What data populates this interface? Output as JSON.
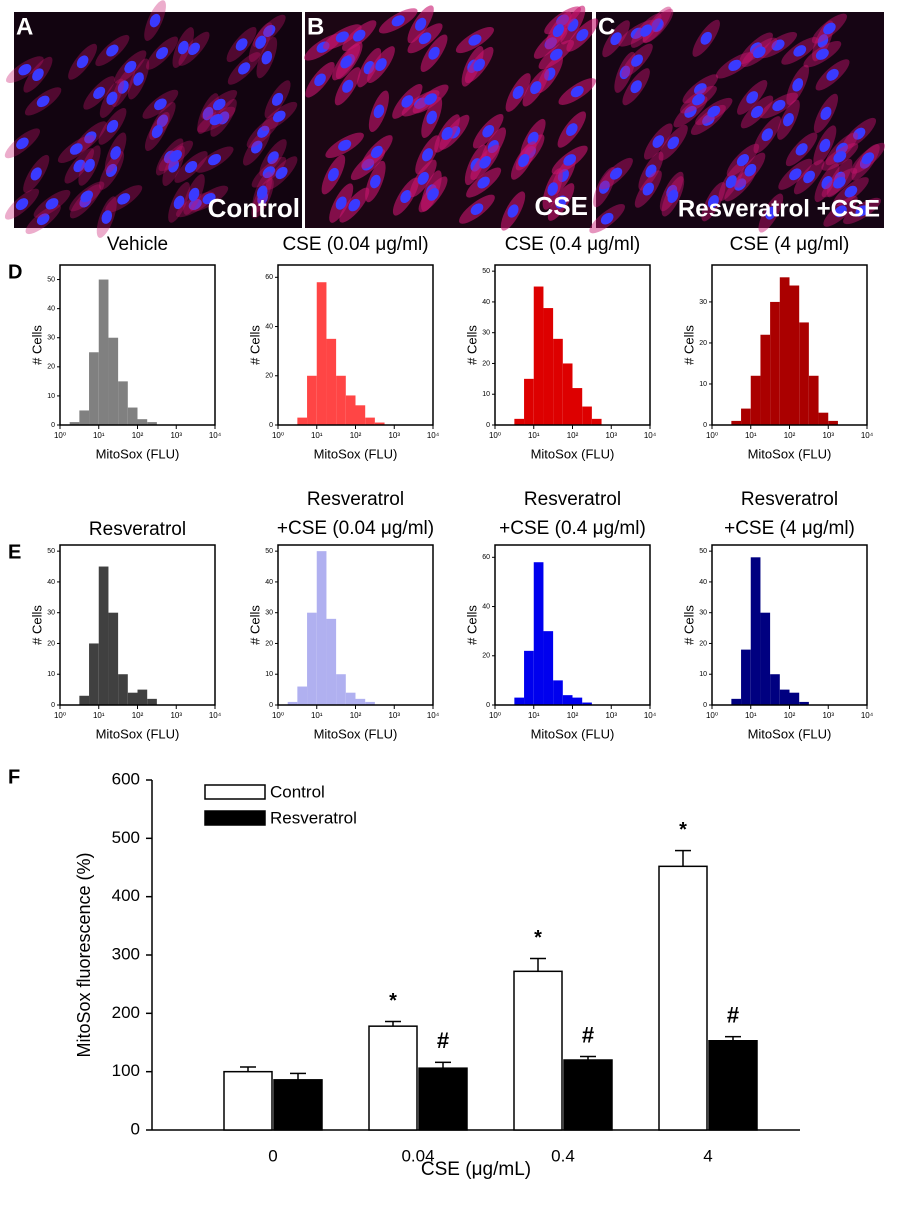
{
  "panels": [
    {
      "letter": "A",
      "label": "Control"
    },
    {
      "letter": "B",
      "label": "CSE"
    },
    {
      "letter": "C",
      "label": "Resveratrol +CSE"
    }
  ],
  "chart_data": [
    {
      "type": "histogram",
      "panel": "D",
      "title": "Vehicle",
      "xlabel": "MitoSox (FLU)",
      "ylabel": "# Cells",
      "color": "#808080",
      "xlog": true,
      "xlim": [
        1,
        10000
      ],
      "xticks": [
        {
          "value": 1,
          "label": "10⁰"
        },
        {
          "value": 10,
          "label": "10¹"
        },
        {
          "value": 100,
          "label": "10²"
        },
        {
          "value": 1000,
          "label": "10³"
        },
        {
          "value": 10000,
          "label": "10⁴"
        }
      ],
      "ylim": [
        0,
        55
      ],
      "yticks": [
        0,
        10,
        20,
        30,
        40,
        50
      ],
      "bins": [
        1,
        1.78,
        3.16,
        5.62,
        10,
        17.8,
        31.6,
        56.2,
        100,
        178,
        316,
        562,
        1000,
        1778,
        3162,
        5623,
        10000
      ],
      "values": [
        0,
        1,
        5,
        25,
        50,
        30,
        15,
        6,
        2,
        1,
        0,
        0,
        0,
        0,
        0,
        0
      ]
    },
    {
      "type": "histogram",
      "title": "CSE (0.04 μg/ml)",
      "xlabel": "MitoSox (FLU)",
      "ylabel": "# Cells",
      "color": "#ff4545",
      "xlog": true,
      "xlim": [
        1,
        10000
      ],
      "xticks": [
        {
          "value": 1,
          "label": "10⁰"
        },
        {
          "value": 10,
          "label": "10¹"
        },
        {
          "value": 100,
          "label": "10²"
        },
        {
          "value": 1000,
          "label": "10³"
        },
        {
          "value": 10000,
          "label": "10⁴"
        }
      ],
      "ylim": [
        0,
        65
      ],
      "yticks": [
        0,
        20,
        40,
        60
      ],
      "bins": [
        1,
        1.78,
        3.16,
        5.62,
        10,
        17.8,
        31.6,
        56.2,
        100,
        178,
        316,
        562,
        1000,
        1778,
        3162,
        5623,
        10000
      ],
      "values": [
        0,
        0,
        3,
        20,
        58,
        35,
        20,
        12,
        8,
        3,
        1,
        0,
        0,
        0,
        0,
        0
      ]
    },
    {
      "type": "histogram",
      "title": "CSE (0.4 μg/ml)",
      "xlabel": "MitoSox (FLU)",
      "ylabel": "# Cells",
      "color": "#dd0000",
      "xlog": true,
      "xlim": [
        1,
        10000
      ],
      "xticks": [
        {
          "value": 1,
          "label": "10⁰"
        },
        {
          "value": 10,
          "label": "10¹"
        },
        {
          "value": 100,
          "label": "10²"
        },
        {
          "value": 1000,
          "label": "10³"
        },
        {
          "value": 10000,
          "label": "10⁴"
        }
      ],
      "ylim": [
        0,
        52
      ],
      "yticks": [
        0,
        10,
        20,
        30,
        40,
        50
      ],
      "bins": [
        1,
        1.78,
        3.16,
        5.62,
        10,
        17.8,
        31.6,
        56.2,
        100,
        178,
        316,
        562,
        1000,
        1778,
        3162,
        5623,
        10000
      ],
      "values": [
        0,
        0,
        2,
        15,
        45,
        38,
        28,
        20,
        12,
        6,
        2,
        0,
        0,
        0,
        0,
        0
      ]
    },
    {
      "type": "histogram",
      "title": "CSE (4 μg/ml)",
      "xlabel": "MitoSox (FLU)",
      "ylabel": "# Cells",
      "color": "#aa0000",
      "xlog": true,
      "xlim": [
        1,
        10000
      ],
      "xticks": [
        {
          "value": 1,
          "label": "10⁰"
        },
        {
          "value": 10,
          "label": "10¹"
        },
        {
          "value": 100,
          "label": "10²"
        },
        {
          "value": 1000,
          "label": "10³"
        },
        {
          "value": 10000,
          "label": "10⁴"
        }
      ],
      "ylim": [
        0,
        39
      ],
      "yticks": [
        0,
        10,
        20,
        30
      ],
      "bins": [
        1,
        1.78,
        3.16,
        5.62,
        10,
        17.8,
        31.6,
        56.2,
        100,
        178,
        316,
        562,
        1000,
        1778,
        3162,
        5623,
        10000
      ],
      "values": [
        0,
        0,
        1,
        4,
        12,
        22,
        30,
        36,
        34,
        25,
        12,
        3,
        1,
        0,
        0,
        0
      ]
    },
    {
      "type": "histogram",
      "panel": "E",
      "title": "Resveratrol",
      "xlabel": "MitoSox (FLU)",
      "ylabel": "# Cells",
      "color": "#404040",
      "xlog": true,
      "xlim": [
        1,
        10000
      ],
      "xticks": [
        {
          "value": 1,
          "label": "10⁰"
        },
        {
          "value": 10,
          "label": "10¹"
        },
        {
          "value": 100,
          "label": "10²"
        },
        {
          "value": 1000,
          "label": "10³"
        },
        {
          "value": 10000,
          "label": "10⁴"
        }
      ],
      "ylim": [
        0,
        52
      ],
      "yticks": [
        0,
        10,
        20,
        30,
        40,
        50
      ],
      "bins": [
        1,
        1.78,
        3.16,
        5.62,
        10,
        17.8,
        31.6,
        56.2,
        100,
        178,
        316,
        562,
        1000,
        1778,
        3162,
        5623,
        10000
      ],
      "values": [
        0,
        0,
        3,
        20,
        45,
        30,
        10,
        4,
        5,
        2,
        0,
        0,
        0,
        0,
        0,
        0
      ]
    },
    {
      "type": "histogram",
      "title": [
        "Resveratrol",
        "+CSE (0.04 μg/ml)"
      ],
      "xlabel": "MitoSox (FLU)",
      "ylabel": "# Cells",
      "color": "#b0b0f0",
      "xlog": true,
      "xlim": [
        1,
        10000
      ],
      "xticks": [
        {
          "value": 1,
          "label": "10⁰"
        },
        {
          "value": 10,
          "label": "10¹"
        },
        {
          "value": 100,
          "label": "10²"
        },
        {
          "value": 1000,
          "label": "10³"
        },
        {
          "value": 10000,
          "label": "10⁴"
        }
      ],
      "ylim": [
        0,
        52
      ],
      "yticks": [
        0,
        10,
        20,
        30,
        40,
        50
      ],
      "bins": [
        1,
        1.78,
        3.16,
        5.62,
        10,
        17.8,
        31.6,
        56.2,
        100,
        178,
        316,
        562,
        1000,
        1778,
        3162,
        5623,
        10000
      ],
      "values": [
        0,
        1,
        6,
        30,
        50,
        28,
        10,
        4,
        2,
        1,
        0,
        0,
        0,
        0,
        0,
        0
      ]
    },
    {
      "type": "histogram",
      "title": [
        "Resveratrol",
        "+CSE (0.4 μg/ml)"
      ],
      "xlabel": "MitoSox (FLU)",
      "ylabel": "# Cells",
      "color": "#0000ee",
      "xlog": true,
      "xlim": [
        1,
        10000
      ],
      "xticks": [
        {
          "value": 1,
          "label": "10⁰"
        },
        {
          "value": 10,
          "label": "10¹"
        },
        {
          "value": 100,
          "label": "10²"
        },
        {
          "value": 1000,
          "label": "10³"
        },
        {
          "value": 10000,
          "label": "10⁴"
        }
      ],
      "ylim": [
        0,
        65
      ],
      "yticks": [
        0,
        20,
        40,
        60
      ],
      "bins": [
        1,
        1.78,
        3.16,
        5.62,
        10,
        17.8,
        31.6,
        56.2,
        100,
        178,
        316,
        562,
        1000,
        1778,
        3162,
        5623,
        10000
      ],
      "values": [
        0,
        0,
        3,
        22,
        58,
        30,
        10,
        4,
        3,
        1,
        0,
        0,
        0,
        0,
        0,
        0
      ]
    },
    {
      "type": "histogram",
      "title": [
        "Resveratrol",
        "+CSE (4 μg/ml)"
      ],
      "xlabel": "MitoSox (FLU)",
      "ylabel": "# Cells",
      "color": "#000080",
      "xlog": true,
      "xlim": [
        1,
        10000
      ],
      "xticks": [
        {
          "value": 1,
          "label": "10⁰"
        },
        {
          "value": 10,
          "label": "10¹"
        },
        {
          "value": 100,
          "label": "10²"
        },
        {
          "value": 1000,
          "label": "10³"
        },
        {
          "value": 10000,
          "label": "10⁴"
        }
      ],
      "ylim": [
        0,
        52
      ],
      "yticks": [
        0,
        10,
        20,
        30,
        40,
        50
      ],
      "bins": [
        1,
        1.78,
        3.16,
        5.62,
        10,
        17.8,
        31.6,
        56.2,
        100,
        178,
        316,
        562,
        1000,
        1778,
        3162,
        5623,
        10000
      ],
      "values": [
        0,
        0,
        2,
        18,
        48,
        30,
        10,
        5,
        4,
        1,
        0,
        0,
        0,
        0,
        0,
        0
      ]
    },
    {
      "type": "bar",
      "panel": "F",
      "categories": [
        "0",
        "0.04",
        "0.4",
        "4"
      ],
      "xlabel": "CSE (μg/mL)",
      "ylabel": "MitoSox fluorescence (%)",
      "ylim": [
        0,
        600
      ],
      "yticks": [
        0,
        100,
        200,
        300,
        400,
        500,
        600
      ],
      "series": [
        {
          "name": "Control",
          "color": "#ffffff",
          "values": [
            100,
            178,
            272,
            452
          ],
          "errors": [
            8,
            8,
            22,
            27
          ],
          "labels": [
            null,
            "*",
            "*",
            "*"
          ]
        },
        {
          "name": "Resveratrol",
          "color": "#000000",
          "values": [
            86,
            106,
            120,
            153
          ],
          "errors": [
            11,
            10,
            6,
            7
          ],
          "labels": [
            null,
            "#",
            "#",
            "#"
          ]
        }
      ]
    }
  ]
}
